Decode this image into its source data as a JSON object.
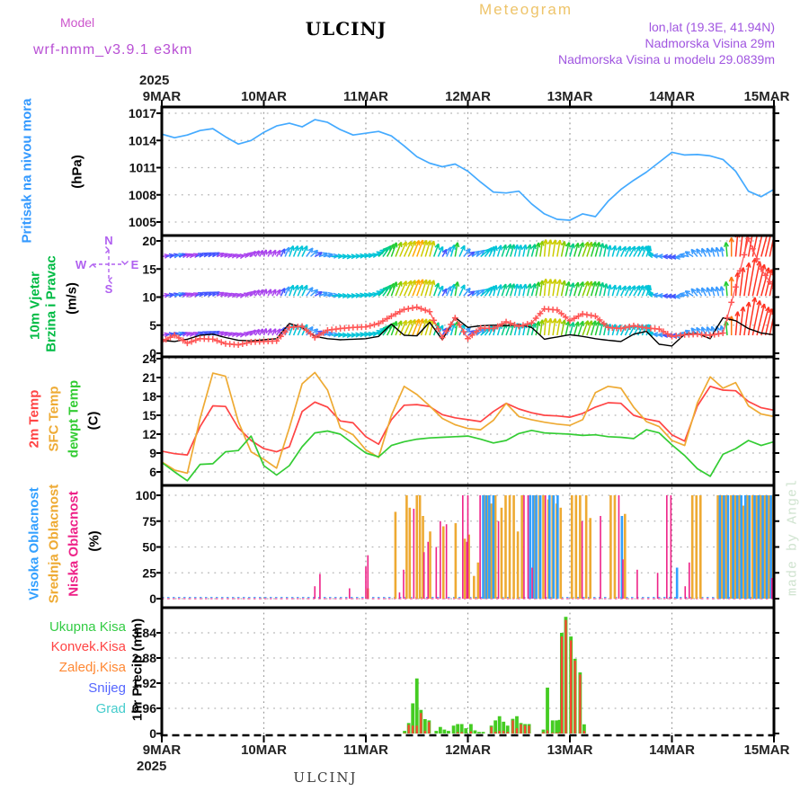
{
  "header": {
    "meteogram": "Meteogram",
    "model_label": "Model",
    "model_name": "wrf-nmm_v3.9.1  e3km",
    "title": "ULCINJ",
    "lonlat": "lon,lat (19.3E, 41.94N)",
    "elevation": "Nadmorska Visina 29m",
    "model_elevation": "Nadmorska Visina u modelu 29.0839m"
  },
  "x_axis": {
    "year": "2025",
    "days": [
      "9MAR",
      "10MAR",
      "11MAR",
      "12MAR",
      "13MAR",
      "14MAR",
      "15MAR"
    ]
  },
  "footer": {
    "station": "ULCINJ"
  },
  "watermark": "made by Angel",
  "colors": {
    "pressure_line": "#44aaff",
    "grid": "#b5b5b5",
    "frame": "#000000"
  },
  "chart_data": [
    {
      "id": "pressure",
      "type": "line",
      "label": "Pritisak na nivou mora",
      "label_color": "#3399ff",
      "unit": "(hPa)",
      "yticks": [
        1005,
        1008,
        1011,
        1014,
        1017
      ],
      "ylim": [
        1003.5,
        1017.7
      ],
      "hours_step": 3,
      "color": "#44aaff",
      "values": [
        1014.7,
        1014.3,
        1014.6,
        1015.1,
        1015.3,
        1014.4,
        1013.6,
        1014.0,
        1014.9,
        1015.6,
        1015.9,
        1015.5,
        1016.3,
        1016.0,
        1015.2,
        1014.6,
        1014.8,
        1015.0,
        1014.5,
        1013.4,
        1012.2,
        1011.5,
        1011.1,
        1011.4,
        1010.6,
        1009.4,
        1008.3,
        1008.2,
        1008.4,
        1007.0,
        1005.9,
        1005.3,
        1005.2,
        1005.9,
        1005.6,
        1007.3,
        1008.6,
        1009.6,
        1010.5,
        1011.6,
        1012.7,
        1012.4,
        1012.45,
        1012.3,
        1011.9,
        1010.6,
        1008.4,
        1007.8,
        1008.6,
        1008.7
      ]
    },
    {
      "id": "wind",
      "type": "wind-vectors",
      "labels": [
        "10m Vjetar",
        "Brzina i Pravac"
      ],
      "label_color": "#00bb44",
      "unit": "(m/s)",
      "yticks": [
        0,
        5,
        10,
        15,
        20
      ],
      "ylim": [
        0,
        21.6
      ],
      "hours_step": 3,
      "compass": {
        "n": "N",
        "e": "E",
        "s": "S",
        "w": "W",
        "color": "#b060f0"
      },
      "rows": [
        17.2,
        10.2,
        3.2
      ],
      "speed_color": "#000000",
      "gust_color": "#ff5555",
      "speed": [
        2.3,
        2.1,
        2.5,
        3.2,
        3.4,
        2.8,
        2.3,
        2.2,
        2.4,
        2.6,
        5.3,
        4.6,
        3.0,
        2.6,
        2.4,
        2.5,
        2.6,
        3.0,
        5.2,
        3.2,
        3.1,
        5.5,
        2.4,
        6.4,
        4.6,
        4.9,
        5.0,
        4.9,
        5.1,
        4.6,
        2.5,
        2.9,
        3.3,
        3.0,
        2.6,
        2.3,
        2.1,
        3.4,
        3.9,
        1.6,
        1.3,
        3.4,
        3.5,
        2.6,
        6.3,
        5.8,
        4.4,
        3.6,
        3.3,
        3.2
      ],
      "gust": [
        2.1,
        3.2,
        1.8,
        2.6,
        2.5,
        1.7,
        1.5,
        2.0,
        2.1,
        2.2,
        4.6,
        4.8,
        2.8,
        4.1,
        4.4,
        4.6,
        4.7,
        5.3,
        6.6,
        7.8,
        8.2,
        7.4,
        2.8,
        6.3,
        2.6,
        4.5,
        4.4,
        5.6,
        4.8,
        5.4,
        7.9,
        7.7,
        5.8,
        7.0,
        6.6,
        4.6,
        4.4,
        4.9,
        4.5,
        4.3,
        3.0,
        3.3,
        3.4,
        3.2,
        3.6,
        11.8,
        20.4,
        15.0,
        11.6,
        11.5
      ],
      "dir": [
        80,
        75,
        70,
        65,
        60,
        70,
        80,
        40,
        20,
        30,
        20,
        25,
        60,
        85,
        90,
        85,
        80,
        45,
        20,
        25,
        20,
        15,
        30,
        10,
        55,
        50,
        15,
        20,
        10,
        15,
        5,
        10,
        15,
        20,
        15,
        10,
        25,
        30,
        20,
        280,
        270,
        265,
        320,
        340,
        350,
        5,
        10,
        15,
        10,
        10
      ]
    },
    {
      "id": "temp",
      "type": "multi-line",
      "unit": "(C)",
      "yticks": [
        6,
        9,
        12,
        15,
        18,
        21,
        24
      ],
      "ylim": [
        3.9,
        24.3
      ],
      "hours_step": 3,
      "series": [
        {
          "name": "2m Temp",
          "color": "#ff4444",
          "values": [
            9.3,
            8.9,
            8.7,
            13.2,
            16.5,
            16.4,
            13.0,
            11.0,
            9.7,
            9.2,
            10.0,
            15.6,
            17.1,
            16.3,
            14.1,
            13.8,
            11.6,
            10.4,
            14.3,
            16.6,
            16.7,
            16.4,
            15.1,
            14.6,
            14.3,
            14.0,
            15.6,
            16.9,
            16.0,
            15.4,
            15.0,
            14.9,
            14.7,
            15.3,
            16.3,
            17.0,
            16.9,
            15.0,
            14.4,
            14.0,
            11.9,
            10.9,
            16.5,
            19.6,
            19.0,
            18.9,
            17.2,
            16.2,
            15.8,
            15.6
          ]
        },
        {
          "name": "SFC Temp",
          "color": "#eeaa33",
          "values": [
            7.6,
            6.3,
            5.8,
            14.5,
            21.7,
            21.2,
            14.0,
            9.2,
            8.0,
            6.6,
            13.0,
            20.0,
            21.8,
            19.0,
            13.0,
            11.9,
            9.5,
            8.3,
            15.0,
            19.6,
            18.3,
            16.5,
            14.5,
            13.5,
            12.9,
            12.7,
            14.2,
            16.9,
            14.8,
            14.3,
            13.9,
            13.6,
            13.4,
            14.3,
            18.6,
            19.6,
            19.3,
            16.3,
            14.0,
            13.2,
            11.0,
            10.2,
            17.0,
            21.1,
            19.3,
            20.2,
            16.5,
            15.2,
            14.8,
            14.6
          ]
        },
        {
          "name": "dewpt Temp",
          "color": "#33cc33",
          "values": [
            7.5,
            6.0,
            4.6,
            7.2,
            7.3,
            9.2,
            9.4,
            11.7,
            7.0,
            5.5,
            7.0,
            10.0,
            12.2,
            12.5,
            12.0,
            10.5,
            9.0,
            8.4,
            10.2,
            10.8,
            11.2,
            11.4,
            11.5,
            11.6,
            11.7,
            11.2,
            10.6,
            11.0,
            12.1,
            12.6,
            12.2,
            12.1,
            12.0,
            11.8,
            11.9,
            11.6,
            11.5,
            11.3,
            12.7,
            12.2,
            10.3,
            8.6,
            6.5,
            5.3,
            8.8,
            9.7,
            11.0,
            10.2,
            10.8,
            11.2
          ]
        }
      ]
    },
    {
      "id": "cloud",
      "type": "bar",
      "unit": "(%)",
      "yticks": [
        0,
        25,
        50,
        75,
        100
      ],
      "ylim": [
        0,
        110
      ],
      "series": [
        {
          "name": "Visoka Oblacnost",
          "color": "#33a0ff",
          "bar_w": 2.6,
          "points": [
            [
              3.15,
              100
            ],
            [
              3.18,
              100
            ],
            [
              3.21,
              100
            ],
            [
              3.25,
              100
            ],
            [
              3.61,
              100
            ],
            [
              3.64,
              100
            ],
            [
              3.67,
              100
            ],
            [
              3.71,
              100
            ],
            [
              3.8,
              100
            ],
            [
              3.84,
              100
            ],
            [
              3.88,
              100
            ],
            [
              4.51,
              80
            ],
            [
              5.05,
              30
            ],
            [
              5.47,
              100
            ],
            [
              5.51,
              100
            ],
            [
              5.55,
              100
            ],
            [
              5.6,
              100
            ],
            [
              5.64,
              100
            ],
            [
              5.68,
              100
            ],
            [
              5.72,
              100
            ],
            [
              5.76,
              100
            ],
            [
              5.81,
              100
            ],
            [
              5.85,
              100
            ],
            [
              5.89,
              100
            ],
            [
              5.93,
              100
            ],
            [
              5.97,
              100
            ]
          ]
        },
        {
          "name": "Srednja Oblacnost",
          "color": "#eeaa33",
          "bar_w": 2.6,
          "points": [
            [
              2.02,
              10
            ],
            [
              2.29,
              84
            ],
            [
              2.4,
              100
            ],
            [
              2.43,
              88
            ],
            [
              2.5,
              100
            ],
            [
              2.53,
              100
            ],
            [
              2.56,
              80
            ],
            [
              2.63,
              65
            ],
            [
              2.76,
              70
            ],
            [
              2.88,
              73
            ],
            [
              2.97,
              58
            ],
            [
              3.01,
              62
            ],
            [
              3.06,
              22
            ],
            [
              3.1,
              35
            ],
            [
              3.16,
              100
            ],
            [
              3.19,
              100
            ],
            [
              3.23,
              92
            ],
            [
              3.27,
              100
            ],
            [
              3.33,
              88
            ],
            [
              3.37,
              100
            ],
            [
              3.41,
              100
            ],
            [
              3.45,
              100
            ],
            [
              3.49,
              65
            ],
            [
              3.53,
              100
            ],
            [
              3.66,
              100
            ],
            [
              3.7,
              100
            ],
            [
              3.74,
              100
            ],
            [
              3.79,
              96
            ],
            [
              3.83,
              100
            ],
            [
              3.87,
              92
            ],
            [
              3.91,
              88
            ],
            [
              4.02,
              100
            ],
            [
              4.06,
              100
            ],
            [
              4.1,
              100
            ],
            [
              4.16,
              100
            ],
            [
              4.2,
              78
            ],
            [
              4.4,
              100
            ],
            [
              4.44,
              100
            ],
            [
              4.54,
              82
            ],
            [
              5.2,
              100
            ],
            [
              5.24,
              100
            ],
            [
              5.28,
              100
            ],
            [
              5.45,
              100
            ],
            [
              5.49,
              100
            ],
            [
              5.53,
              100
            ],
            [
              5.58,
              100
            ],
            [
              5.62,
              100
            ],
            [
              5.66,
              100
            ],
            [
              5.7,
              90
            ],
            [
              5.74,
              100
            ],
            [
              5.79,
              100
            ],
            [
              5.83,
              100
            ],
            [
              5.87,
              100
            ],
            [
              5.91,
              100
            ],
            [
              5.95,
              100
            ],
            [
              5.99,
              100
            ]
          ]
        },
        {
          "name": "Niska Oblacnost",
          "color": "#ee2288",
          "bar_w": 1.6,
          "points": [
            [
              1.5,
              12
            ],
            [
              1.55,
              24
            ],
            [
              1.84,
              10
            ],
            [
              2.0,
              31
            ],
            [
              2.02,
              42
            ],
            [
              2.33,
              6
            ],
            [
              2.37,
              28
            ],
            [
              2.47,
              87
            ],
            [
              2.57,
              45
            ],
            [
              2.61,
              55
            ],
            [
              2.69,
              50
            ],
            [
              2.73,
              75
            ],
            [
              2.79,
              72
            ],
            [
              2.95,
              100
            ],
            [
              2.99,
              55
            ],
            [
              3.0,
              100
            ],
            [
              3.12,
              100
            ],
            [
              3.3,
              75
            ],
            [
              3.55,
              100
            ],
            [
              3.59,
              100
            ],
            [
              3.63,
              30
            ],
            [
              3.76,
              100
            ],
            [
              4.12,
              75
            ],
            [
              4.3,
              80
            ],
            [
              4.48,
              100
            ],
            [
              4.52,
              38
            ],
            [
              4.66,
              28
            ],
            [
              4.86,
              25
            ],
            [
              4.95,
              100
            ],
            [
              4.99,
              100
            ],
            [
              5.13,
              12
            ],
            [
              5.17,
              35
            ],
            [
              5.98,
              20
            ]
          ]
        }
      ]
    },
    {
      "id": "precip",
      "type": "bar",
      "unit": "1hr Precip (mm)",
      "yticks": [
        0,
        0.96,
        1.92,
        2.88,
        3.84
      ],
      "ylim": [
        0,
        4.77
      ],
      "legend": [
        {
          "name": "Ukupna Kisa",
          "color": "#33cc44"
        },
        {
          "name": "Konvek.Kisa",
          "color": "#ff4444"
        },
        {
          "name": "Zaledj.Kisa",
          "color": "#ff8833"
        },
        {
          "name": "Snijeg",
          "color": "#5566ff"
        },
        {
          "name": "Grad",
          "color": "#44cccc"
        }
      ],
      "total_color": "#44cc22",
      "convective_color": "#ff4433",
      "points": [
        [
          2.38,
          0.1,
          0.02
        ],
        [
          2.42,
          0.4,
          0.33
        ],
        [
          2.46,
          1.15,
          0.3
        ],
        [
          2.5,
          2.1,
          0.3
        ],
        [
          2.54,
          0.9,
          0.78
        ],
        [
          2.58,
          0.55,
          0.1
        ],
        [
          2.62,
          0.5,
          0.44
        ],
        [
          2.69,
          0.1,
          0.0
        ],
        [
          2.73,
          0.25,
          0.0
        ],
        [
          2.77,
          0.15,
          0.0
        ],
        [
          2.81,
          0.1,
          0.0
        ],
        [
          2.86,
          0.3,
          0.0
        ],
        [
          2.9,
          0.36,
          0.05
        ],
        [
          2.94,
          0.36,
          0.05
        ],
        [
          2.98,
          0.2,
          0.0
        ],
        [
          3.03,
          0.36,
          0.08
        ],
        [
          3.07,
          0.12,
          0.0
        ],
        [
          3.11,
          0.06,
          0.0
        ],
        [
          3.15,
          0.06,
          0.0
        ],
        [
          3.23,
          0.3,
          0.25
        ],
        [
          3.27,
          0.5,
          0.06
        ],
        [
          3.31,
          0.66,
          0.1
        ],
        [
          3.35,
          0.45,
          0.1
        ],
        [
          3.39,
          0.3,
          0.06
        ],
        [
          3.44,
          0.56,
          0.5
        ],
        [
          3.48,
          0.66,
          0.2
        ],
        [
          3.52,
          0.4,
          0.35
        ],
        [
          3.56,
          0.36,
          0.3
        ],
        [
          3.6,
          0.36,
          0.3
        ],
        [
          3.74,
          0.15,
          0.05
        ],
        [
          3.78,
          1.75,
          0.12
        ],
        [
          3.83,
          0.5,
          0.03
        ],
        [
          3.87,
          0.5,
          0.03
        ],
        [
          3.9,
          0.52,
          0.05
        ],
        [
          3.92,
          3.84,
          3.7
        ],
        [
          3.96,
          4.45,
          4.33
        ],
        [
          4.01,
          3.7,
          3.55
        ],
        [
          4.05,
          2.85,
          2.78
        ],
        [
          4.1,
          2.33,
          2.25
        ],
        [
          4.14,
          0.35,
          0.1
        ]
      ]
    }
  ]
}
